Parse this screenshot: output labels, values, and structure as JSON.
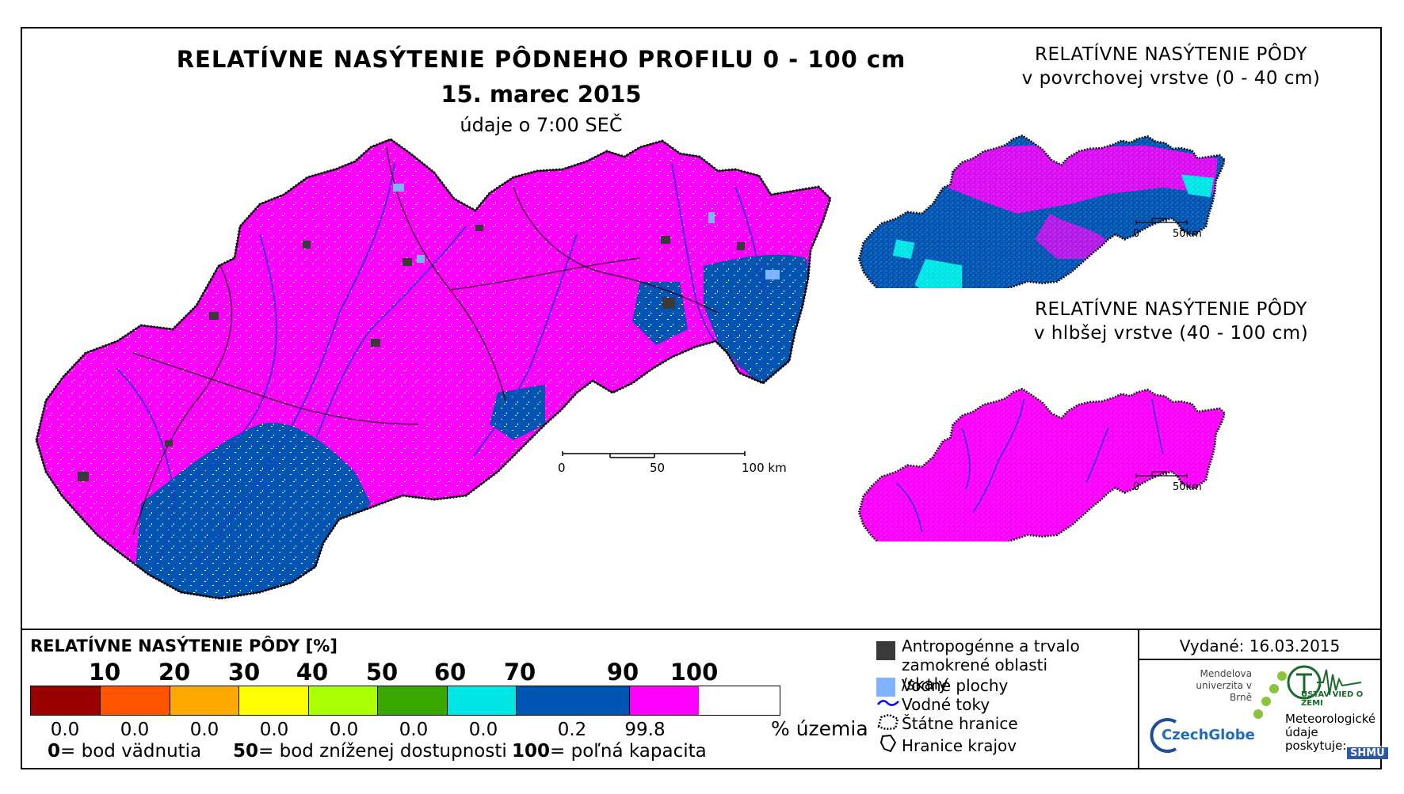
{
  "title": {
    "main": "RELATÍVNE NASÝTENIE PÔDNEHO PROFILU 0 - 100 cm",
    "date": "15. marec 2015",
    "time": "údaje o 7:00 SEČ"
  },
  "insets": [
    {
      "line1": "RELATÍVNE NASÝTENIE PÔDY",
      "line2": "v povrchovej vrstve (0 - 40 cm)",
      "scale": [
        "0",
        "50km"
      ]
    },
    {
      "line1": "RELATÍVNE NASÝTENIE PÔDY",
      "line2": "v hlbšej vrstve (40 - 100 cm)",
      "scale": [
        "0",
        "50km"
      ]
    }
  ],
  "main_scale": [
    "0",
    "50",
    "100 km"
  ],
  "legend": {
    "title": "RELATÍVNE NASÝTENIE PÔDY [%]",
    "ticks": [
      "10",
      "20",
      "30",
      "40",
      "50",
      "60",
      "70",
      "90",
      "100"
    ],
    "classes": [
      {
        "color": "#990000",
        "percent": "0.0"
      },
      {
        "color": "#ff5500",
        "percent": "0.0"
      },
      {
        "color": "#ffaa00",
        "percent": "0.0"
      },
      {
        "color": "#ffff00",
        "percent": "0.0"
      },
      {
        "color": "#aaff00",
        "percent": "0.0"
      },
      {
        "color": "#38a800",
        "percent": "0.0"
      },
      {
        "color": "#00e5e5",
        "percent": "0.0"
      },
      {
        "color": "#0055b3",
        "percent": "0.2"
      },
      {
        "color": "#ff00ff",
        "percent": "99.8"
      }
    ],
    "percent_unit": "% územia",
    "definitions": [
      {
        "value": "0",
        "text": "= bod vädnutia"
      },
      {
        "value": "50",
        "text": "= bod zníženej dostupnosti"
      },
      {
        "value": "100",
        "text": "= poľná kapacita"
      }
    ],
    "items": [
      {
        "icon": "dark-square-icon",
        "color": "#3a3a3a",
        "label": "Antropogénne a trvalo zamokrené oblasti /skaly"
      },
      {
        "icon": "light-blue-square-icon",
        "color": "#7fb2ff",
        "label": "Vodné plochy"
      },
      {
        "icon": "river-line-icon",
        "color": "#0000ff",
        "label": "Vodné toky"
      },
      {
        "icon": "state-border-icon",
        "color": "#000000",
        "label": "Štátne hranice"
      },
      {
        "icon": "region-border-icon",
        "color": "#000000",
        "label": "Hranice krajov"
      }
    ]
  },
  "issued": "Vydané: 16.03.2015",
  "logos": {
    "mendel": "Mendelova univerzita v Brně",
    "czechglobe": "CzechGlobe",
    "institute": "ÚSTAV VIED O ZEMI",
    "meteo": "Meteorologické údaje poskytuje:",
    "shmu": "SHMÚ"
  },
  "colors": {
    "wet": "#ff00ff",
    "blue": "#0055b3",
    "cyan": "#00e5e5",
    "anthro": "#3a3a3a"
  }
}
